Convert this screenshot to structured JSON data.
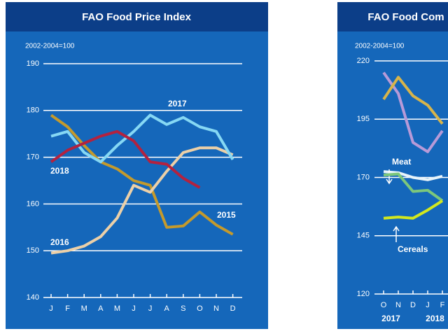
{
  "chart_data": [
    {
      "type": "line",
      "title": "FAO Food Price Index",
      "subtitle": "2002-2004=100",
      "categories": [
        "J",
        "F",
        "M",
        "A",
        "M",
        "J",
        "J",
        "A",
        "S",
        "O",
        "N",
        "D"
      ],
      "ylim": [
        140,
        190
      ],
      "yticks": [
        140,
        150,
        160,
        170,
        180,
        190
      ],
      "grid": true,
      "series": [
        {
          "name": "2015",
          "color": "#c49a2c",
          "values": [
            179,
            176.5,
            172.5,
            169,
            167.5,
            165,
            164,
            155,
            155.3,
            158.3,
            155.5,
            153.5
          ]
        },
        {
          "name": "2016",
          "color": "#ecd0a8",
          "values": [
            149.5,
            150,
            151,
            153,
            157,
            164,
            162.5,
            167,
            171,
            172,
            172,
            170.5
          ]
        },
        {
          "name": "2017",
          "color": "#86d8f4",
          "values": [
            174.5,
            175.5,
            171,
            169,
            172.5,
            175.5,
            179,
            177,
            178.5,
            176.5,
            175.5,
            169.5
          ]
        },
        {
          "name": "2018",
          "color": "#b3223f",
          "values": [
            169,
            171.5,
            173,
            174.5,
            175.5,
            173.5,
            169,
            168.5,
            165.5,
            163.5,
            null,
            null
          ]
        }
      ]
    },
    {
      "type": "line",
      "title": "FAO Food Com",
      "subtitle": "2002-2004=100",
      "categories": [
        "O",
        "N",
        "D",
        "J",
        "F"
      ],
      "years": [
        "2017",
        null,
        null,
        "2018",
        null
      ],
      "ylim": [
        120,
        220
      ],
      "yticks": [
        120,
        145,
        170,
        195,
        220
      ],
      "grid": true,
      "series": [
        {
          "color": "#b79ad8",
          "values": [
            215,
            206,
            185,
            181,
            190
          ]
        },
        {
          "color": "#d7b44a",
          "values": [
            203.5,
            213,
            205,
            201,
            193
          ]
        },
        {
          "name": "Meat",
          "color": "#e8f4fa",
          "values": [
            172.5,
            172,
            170,
            169,
            170.5
          ]
        },
        {
          "color": "#7cc77c",
          "values": [
            171,
            171.5,
            164,
            164.5,
            160
          ]
        },
        {
          "name": "Cereals",
          "color": "#d2e81e",
          "values": [
            152.5,
            153,
            152.5,
            156,
            160
          ]
        }
      ]
    }
  ]
}
